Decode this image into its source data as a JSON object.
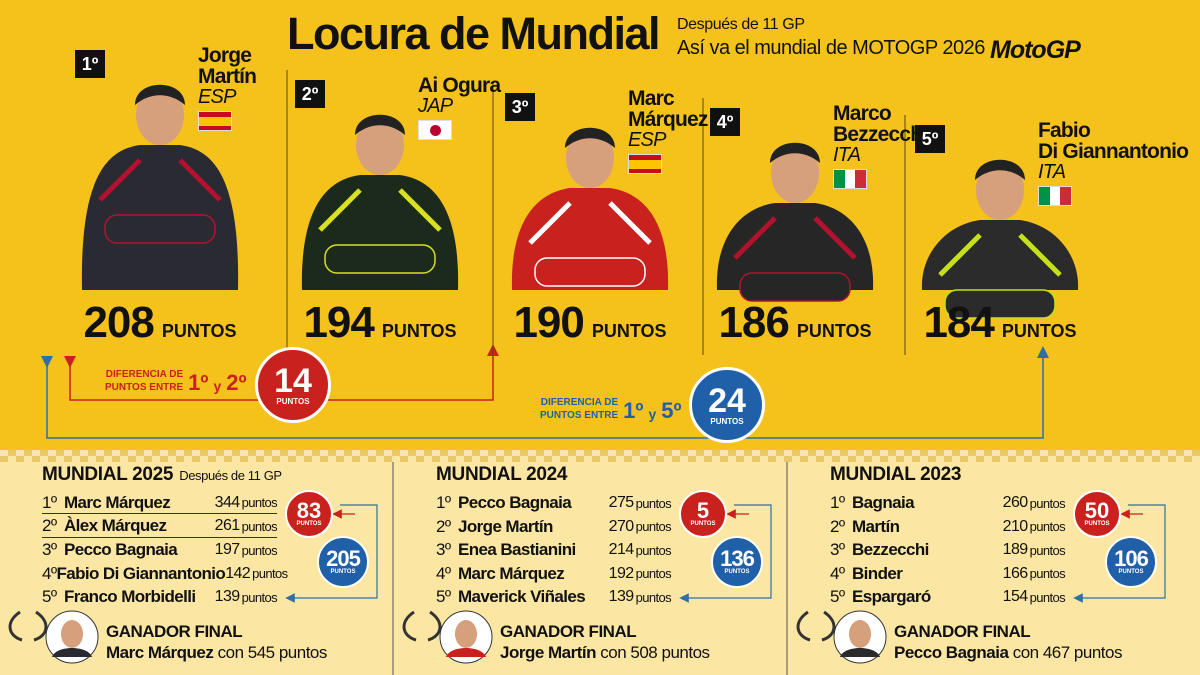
{
  "header": {
    "title": "Locura de Mundial",
    "subtitle": "Después de 11 GP",
    "subtitle2": "Así va el mundial de MOTOGP 2026",
    "logo": "MotoGP"
  },
  "riders": [
    {
      "rank": "1º",
      "name": [
        "Jorge",
        "Martín"
      ],
      "country": "ESP",
      "points": "208"
    },
    {
      "rank": "2º",
      "name": [
        "Ai Ogura"
      ],
      "country": "JAP",
      "points": "194"
    },
    {
      "rank": "3º",
      "name": [
        "Marc",
        "Márquez"
      ],
      "country": "ESP",
      "points": "190"
    },
    {
      "rank": "4º",
      "name": [
        "Marco",
        "Bezzecchi"
      ],
      "country": "ITA",
      "points": "186"
    },
    {
      "rank": "5º",
      "name": [
        "Fabio",
        "Di Giannantonio"
      ],
      "country": "ITA",
      "points": "184"
    }
  ],
  "points_unit": "PUNTOS",
  "gaps": [
    {
      "label": [
        "DIFERENCIA DE",
        "PUNTOS ENTRE"
      ],
      "from": "1º",
      "and": "y",
      "to": "2º",
      "value": "14",
      "unit": "PUNTOS"
    },
    {
      "label": [
        "DIFERENCIA DE",
        "PUNTOS ENTRE"
      ],
      "from": "1º",
      "and": "y",
      "to": "5º",
      "value": "24",
      "unit": "PUNTOS"
    }
  ],
  "past": [
    {
      "title": "MUNDIAL 2025",
      "note": "Después de 11 GP",
      "unit": "puntos",
      "rows": [
        {
          "pos": "1º",
          "name": "Marc Márquez",
          "points": "344"
        },
        {
          "pos": "2º",
          "name": "Àlex Márquez",
          "points": "261"
        },
        {
          "pos": "3º",
          "name": "Pecco Bagnaia",
          "points": "197"
        },
        {
          "pos": "4º",
          "name": "Fabio Di Giannantonio",
          "points": "142"
        },
        {
          "pos": "5º",
          "name": "Franco Morbidelli",
          "points": "139"
        }
      ],
      "gap_1_2": "83",
      "gap_1_5": "205",
      "gap_unit": "PUNTOS",
      "winner_label": "GANADOR FINAL",
      "winner_name": "Marc Márquez",
      "winner_rest": "con 545 puntos"
    },
    {
      "title": "MUNDIAL 2024",
      "unit": "puntos",
      "rows": [
        {
          "pos": "1º",
          "name": "Pecco Bagnaia",
          "points": "275"
        },
        {
          "pos": "2º",
          "name": "Jorge Martín",
          "points": "270"
        },
        {
          "pos": "3º",
          "name": "Enea Bastianini",
          "points": "214"
        },
        {
          "pos": "4º",
          "name": "Marc Márquez",
          "points": "192"
        },
        {
          "pos": "5º",
          "name": "Maverick Viñales",
          "points": "139"
        }
      ],
      "gap_1_2": "5",
      "gap_1_5": "136",
      "gap_unit": "PUNTOS",
      "winner_label": "GANADOR FINAL",
      "winner_name": "Jorge Martín",
      "winner_rest": "con 508 puntos"
    },
    {
      "title": "MUNDIAL 2023",
      "unit": "puntos",
      "rows": [
        {
          "pos": "1º",
          "name": "Bagnaia",
          "points": "260"
        },
        {
          "pos": "2º",
          "name": "Martín",
          "points": "210"
        },
        {
          "pos": "3º",
          "name": "Bezzecchi",
          "points": "189"
        },
        {
          "pos": "4º",
          "name": "Binder",
          "points": "166"
        },
        {
          "pos": "5º",
          "name": "Espargaró",
          "points": "154"
        }
      ],
      "gap_1_2": "50",
      "gap_1_5": "106",
      "gap_unit": "PUNTOS",
      "winner_label": "GANADOR FINAL",
      "winner_name": "Pecco Bagnaia",
      "winner_rest": "con 467 puntos"
    }
  ]
}
